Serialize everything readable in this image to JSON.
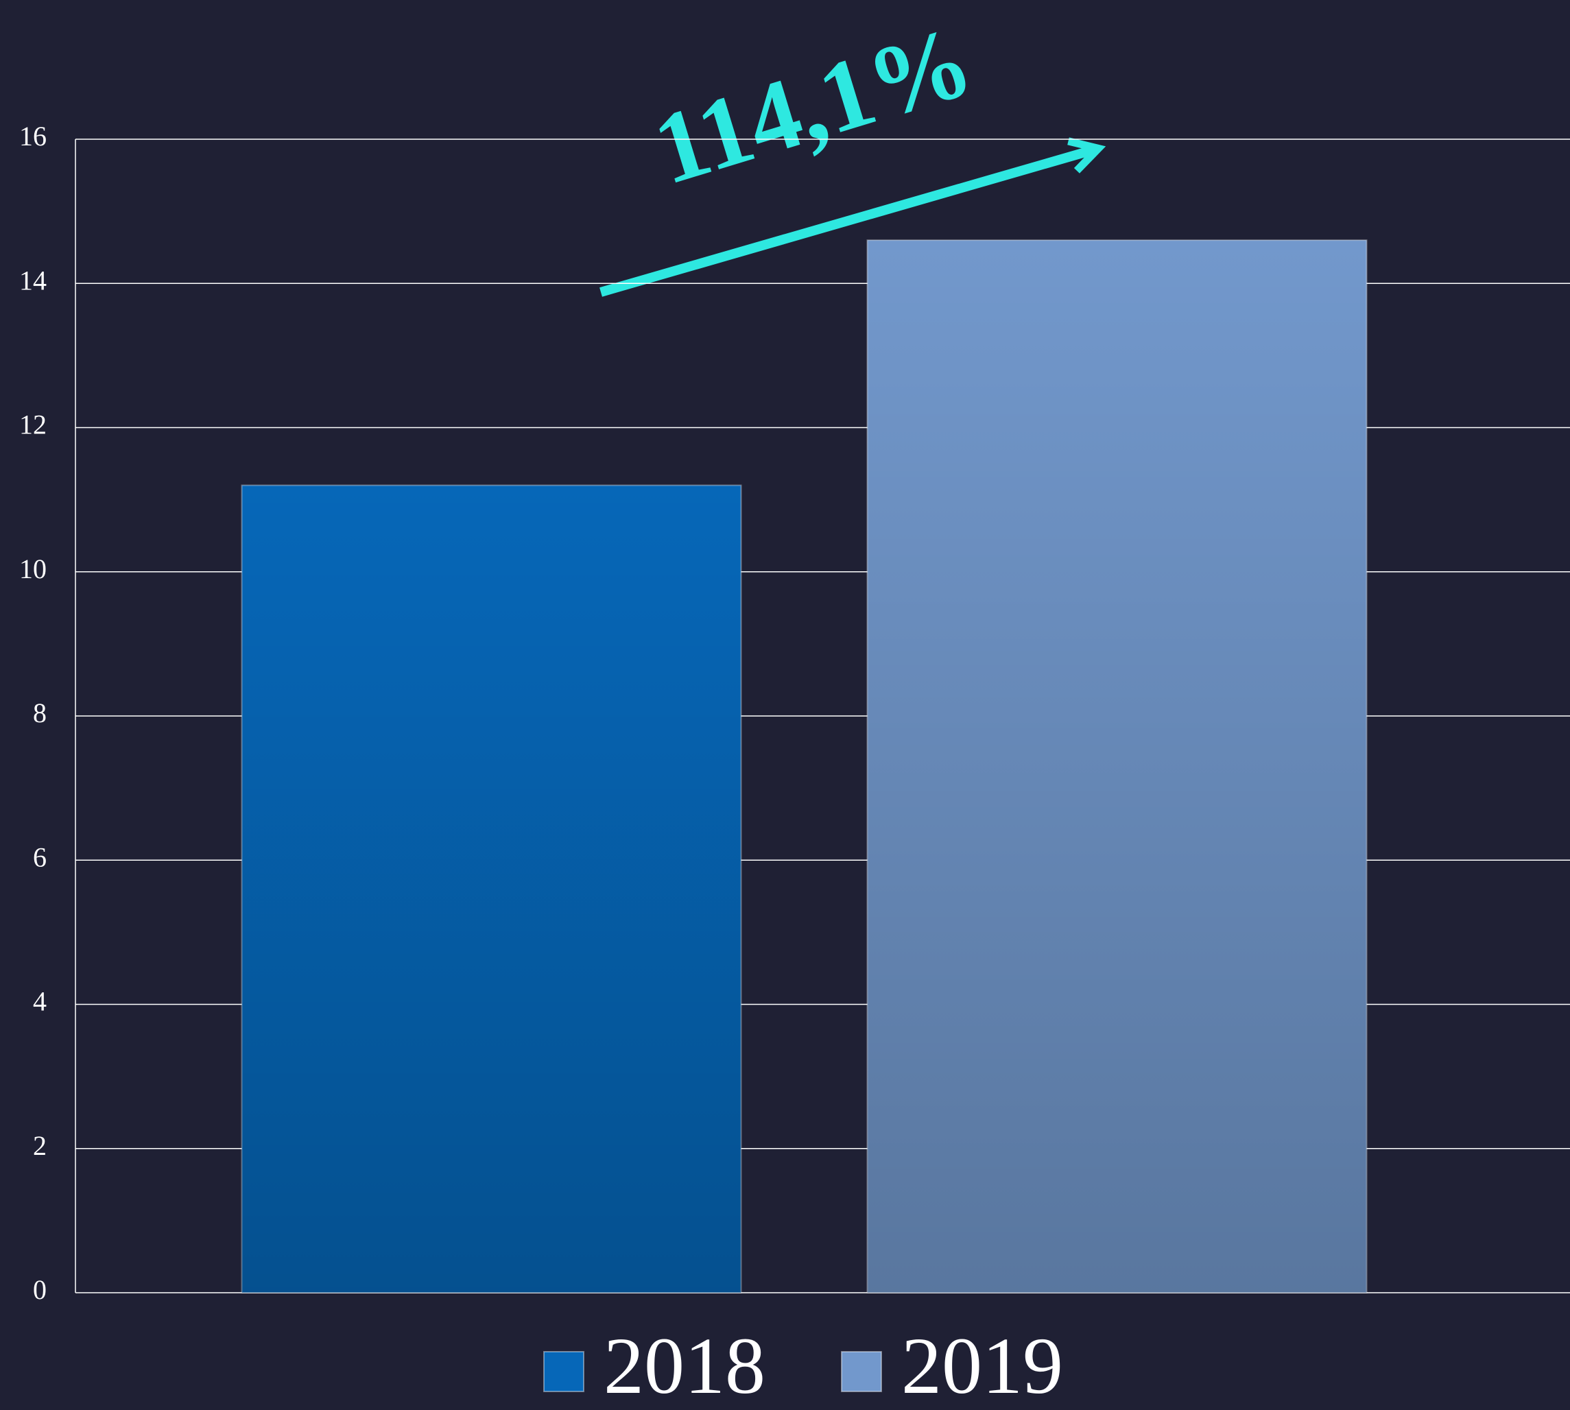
{
  "chart_data": {
    "type": "bar",
    "categories": [
      null
    ],
    "series": [
      {
        "name": "2018",
        "color": "#0667b8",
        "values": [
          11.2
        ]
      },
      {
        "name": "2019",
        "color": "#7298cc",
        "values": [
          14.6
        ]
      }
    ],
    "ylim": [
      0,
      16
    ],
    "yticks": [
      0,
      2,
      4,
      6,
      8,
      10,
      12,
      14,
      16
    ],
    "grid": true,
    "annotation": "114,1%",
    "legend": "bottom"
  }
}
